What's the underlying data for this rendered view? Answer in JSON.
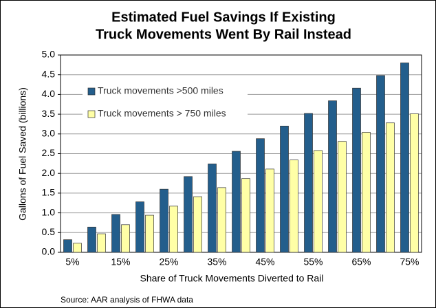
{
  "chart_data": {
    "type": "bar",
    "title": [
      "Estimated Fuel Savings If Existing",
      "Truck Movements Went By Rail Instead"
    ],
    "xlabel": "Share of Truck Movements Diverted to Rail",
    "ylabel": "Gallons of Fuel Saved (billions)",
    "source": "Source: AAR analysis of FHWA data",
    "categories": [
      "5%",
      null,
      "15%",
      null,
      "25%",
      null,
      "35%",
      null,
      "45%",
      null,
      "55%",
      null,
      "65%",
      null,
      "75%"
    ],
    "series": [
      {
        "name": "Truck movements >500 miles",
        "color": "#235e8c",
        "values": [
          0.32,
          0.64,
          0.96,
          1.28,
          1.6,
          1.92,
          2.24,
          2.56,
          2.88,
          3.2,
          3.52,
          3.84,
          4.16,
          4.48,
          4.8
        ]
      },
      {
        "name": "Truck movements > 750 miles",
        "color": "#ffffa6",
        "values": [
          0.23,
          0.47,
          0.7,
          0.94,
          1.17,
          1.41,
          1.64,
          1.87,
          2.11,
          2.34,
          2.58,
          2.81,
          3.04,
          3.28,
          3.51
        ]
      }
    ],
    "ylim": [
      0,
      5
    ],
    "yticks": [
      {
        "value": 0,
        "label": "0.0"
      },
      0.5,
      {
        "value": 1,
        "label": "1.0"
      },
      1.5,
      {
        "value": 2,
        "label": "2.0"
      },
      2.5,
      {
        "value": 3,
        "label": "3.0"
      },
      3.5,
      {
        "value": 4,
        "label": "4.0"
      },
      4.5,
      {
        "value": 5,
        "label": "5.0"
      }
    ],
    "grid": true,
    "legend": "upper left"
  }
}
